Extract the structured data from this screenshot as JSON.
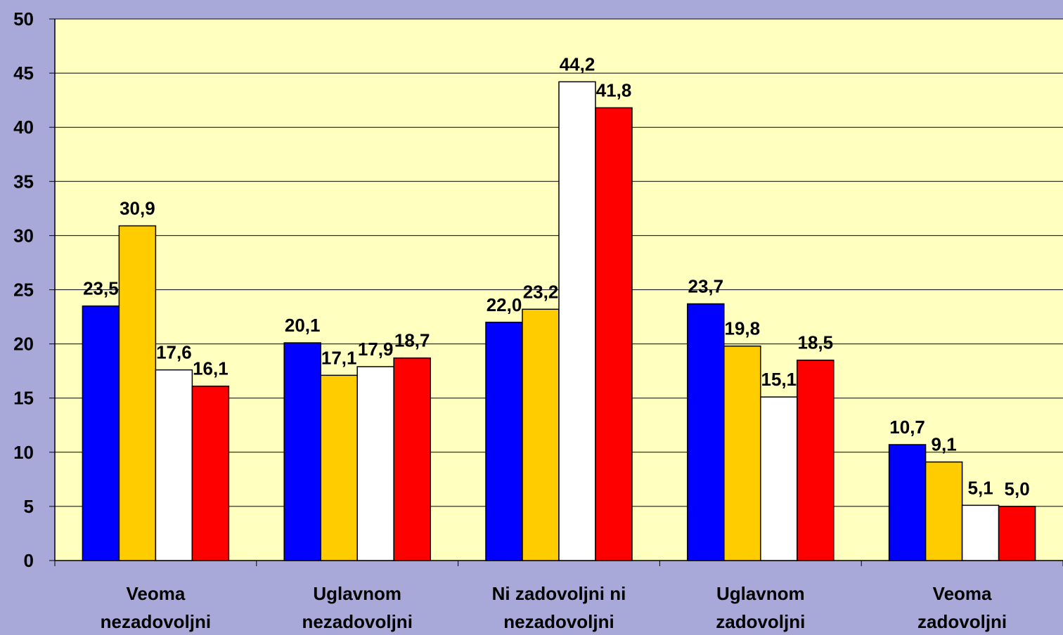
{
  "chart_data": {
    "type": "bar",
    "categories": [
      [
        "Veoma",
        "nezadovoljni"
      ],
      [
        "Uglavnom",
        "nezadovoljni"
      ],
      [
        "Ni zadovoljni ni",
        "nezadovoljni"
      ],
      [
        "Uglavnom",
        "zadovoljni"
      ],
      [
        "Veoma",
        "zadovoljni"
      ]
    ],
    "series": [
      {
        "color": "#0000ff",
        "values": [
          23.5,
          20.1,
          22.0,
          23.7,
          10.7
        ],
        "value_labels": [
          "23,5",
          "20,1",
          "22,0",
          "23,7",
          "10,7"
        ]
      },
      {
        "color": "#ffcc00",
        "values": [
          30.9,
          17.1,
          23.2,
          19.8,
          9.1
        ],
        "value_labels": [
          "30,9",
          "17,1",
          "23,2",
          "19,8",
          "9,1"
        ]
      },
      {
        "color": "#ffffff",
        "values": [
          17.6,
          17.9,
          44.2,
          15.1,
          5.1
        ],
        "value_labels": [
          "17,6",
          "17,9",
          "44,2",
          "15,1",
          "5,1"
        ]
      },
      {
        "color": "#ff0000",
        "values": [
          16.1,
          18.7,
          41.8,
          18.5,
          5.0
        ],
        "value_labels": [
          "16,1",
          "18,7",
          "41,8",
          "18,5",
          "5,0"
        ]
      }
    ],
    "ylim": [
      0,
      50
    ],
    "yticks": [
      0,
      5,
      10,
      15,
      20,
      25,
      30,
      35,
      40,
      45,
      50
    ],
    "grid": true
  }
}
